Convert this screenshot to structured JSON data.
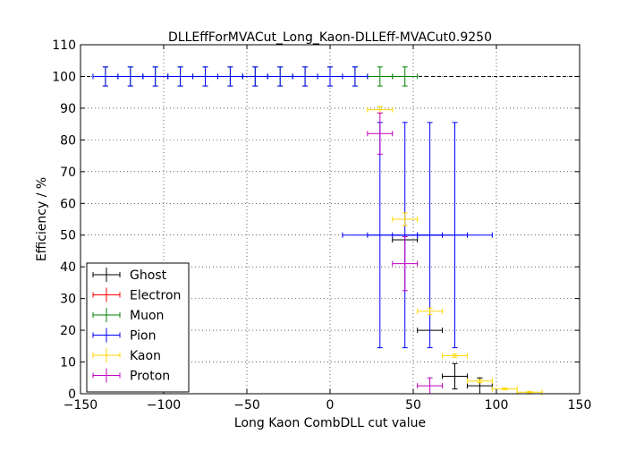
{
  "chart_data": {
    "type": "scatter",
    "title": "DLLEffForMVACut_Long_Kaon-DLLEff-MVACut0.9250",
    "xlabel": "Long Kaon CombDLL cut value",
    "ylabel": "Efficiency / %",
    "xlim": [
      -150,
      150
    ],
    "ylim": [
      0,
      110
    ],
    "xticks": [
      "−150",
      "−100",
      "−50",
      "0",
      "50",
      "100",
      "150"
    ],
    "yticks": [
      "0",
      "10",
      "20",
      "30",
      "40",
      "50",
      "60",
      "70",
      "80",
      "90",
      "100",
      "110"
    ],
    "grid": true,
    "legend_position": "lower-left",
    "reference_line": 100,
    "series": [
      {
        "name": "Ghost",
        "color": "#000000",
        "points": [
          {
            "x": 45,
            "xerr": 7.5,
            "y": 48.5,
            "yerr": 0
          },
          {
            "x": 60,
            "xerr": 7.5,
            "y": 20,
            "yerr": 0
          },
          {
            "x": 75,
            "xerr": 7.5,
            "y": 5.5,
            "yerr": 4
          },
          {
            "x": 90,
            "xerr": 7.5,
            "y": 2.5,
            "yerr": 2.5
          }
        ]
      },
      {
        "name": "Electron",
        "color": "#ff0000",
        "points": []
      },
      {
        "name": "Muon",
        "color": "#008000",
        "points": [
          {
            "x": -135,
            "xerr": 7.5,
            "y": 100,
            "yerr": 3
          },
          {
            "x": -120,
            "xerr": 7.5,
            "y": 100,
            "yerr": 3
          },
          {
            "x": -105,
            "xerr": 7.5,
            "y": 100,
            "yerr": 3
          },
          {
            "x": -90,
            "xerr": 7.5,
            "y": 100,
            "yerr": 3
          },
          {
            "x": -75,
            "xerr": 7.5,
            "y": 100,
            "yerr": 3
          },
          {
            "x": -60,
            "xerr": 7.5,
            "y": 100,
            "yerr": 3
          },
          {
            "x": -45,
            "xerr": 7.5,
            "y": 100,
            "yerr": 3
          },
          {
            "x": -30,
            "xerr": 7.5,
            "y": 100,
            "yerr": 3
          },
          {
            "x": -15,
            "xerr": 7.5,
            "y": 100,
            "yerr": 3
          },
          {
            "x": 0,
            "xerr": 7.5,
            "y": 100,
            "yerr": 3
          },
          {
            "x": 15,
            "xerr": 7.5,
            "y": 100,
            "yerr": 3
          },
          {
            "x": 30,
            "xerr": 7.5,
            "y": 100,
            "yerr": 3
          },
          {
            "x": 45,
            "xerr": 7.5,
            "y": 100,
            "yerr": 3
          }
        ]
      },
      {
        "name": "Pion",
        "color": "#0000ff",
        "points": [
          {
            "x": -135,
            "xerr": 7.5,
            "y": 100,
            "yerr": 3
          },
          {
            "x": -120,
            "xerr": 7.5,
            "y": 100,
            "yerr": 3
          },
          {
            "x": -105,
            "xerr": 7.5,
            "y": 100,
            "yerr": 3
          },
          {
            "x": -90,
            "xerr": 7.5,
            "y": 100,
            "yerr": 3
          },
          {
            "x": -75,
            "xerr": 7.5,
            "y": 100,
            "yerr": 3
          },
          {
            "x": -60,
            "xerr": 7.5,
            "y": 100,
            "yerr": 3
          },
          {
            "x": -45,
            "xerr": 7.5,
            "y": 100,
            "yerr": 3
          },
          {
            "x": -30,
            "xerr": 7.5,
            "y": 100,
            "yerr": 3
          },
          {
            "x": -15,
            "xerr": 7.5,
            "y": 100,
            "yerr": 3
          },
          {
            "x": 0,
            "xerr": 7.5,
            "y": 100,
            "yerr": 3
          },
          {
            "x": 15,
            "xerr": 7.5,
            "y": 100,
            "yerr": 3
          },
          {
            "x": 30,
            "xerr": 22.5,
            "y": 50,
            "yerr": 35.5
          },
          {
            "x": 45,
            "xerr": 22.5,
            "y": 50,
            "yerr": 35.5
          },
          {
            "x": 60,
            "xerr": 22.5,
            "y": 50,
            "yerr": 35.5
          },
          {
            "x": 75,
            "xerr": 22.5,
            "y": 50,
            "yerr": 35.5
          }
        ]
      },
      {
        "name": "Kaon",
        "color": "#ffd700",
        "points": [
          {
            "x": 30,
            "xerr": 7.5,
            "y": 89.5,
            "yerr": 1
          },
          {
            "x": 45,
            "xerr": 7.5,
            "y": 55,
            "yerr": 2
          },
          {
            "x": 60,
            "xerr": 7.5,
            "y": 26,
            "yerr": 1
          },
          {
            "x": 75,
            "xerr": 7.5,
            "y": 12,
            "yerr": 0.5
          },
          {
            "x": 90,
            "xerr": 7.5,
            "y": 4,
            "yerr": 0.5
          },
          {
            "x": 105,
            "xerr": 7.5,
            "y": 1.5,
            "yerr": 0.3
          },
          {
            "x": 120,
            "xerr": 7.5,
            "y": 0.5,
            "yerr": 0.2
          }
        ]
      },
      {
        "name": "Proton",
        "color": "#bf00bf",
        "points": [
          {
            "x": 30,
            "xerr": 7.5,
            "y": 82,
            "yerr": 6.5
          },
          {
            "x": 45,
            "xerr": 7.5,
            "y": 41,
            "yerr": 8.5
          },
          {
            "x": 60,
            "xerr": 7.5,
            "y": 2.5,
            "yerr": 2.5
          }
        ]
      }
    ]
  }
}
